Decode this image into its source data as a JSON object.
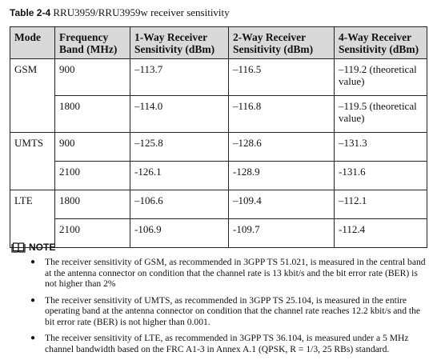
{
  "caption": {
    "number": "Table 2-4",
    "title": "RRU3959/RRU3959w receiver sensitivity"
  },
  "table": {
    "headers": [
      "Mode",
      "Frequency Band (MHz)",
      "1-Way Receiver Sensitivity (dBm)",
      "2-Way Receiver Sensitivity (dBm)",
      "4-Way Receiver Sensitivity (dBm)"
    ],
    "modes": [
      "GSM",
      "UMTS",
      "LTE"
    ],
    "rows": [
      {
        "band": "900",
        "one_way": "–113.7",
        "two_way": "–116.5",
        "four_way": "–119.2 (theoretical value)"
      },
      {
        "band": "1800",
        "one_way": "–114.0",
        "two_way": "–116.8",
        "four_way": "–119.5 (theoretical value)"
      },
      {
        "band": "900",
        "one_way": "–125.8",
        "two_way": "–128.6",
        "four_way": "–131.3"
      },
      {
        "band": "2100",
        "one_way": "-126.1",
        "two_way": "-128.9",
        "four_way": "-131.6"
      },
      {
        "band": "1800",
        "one_way": "–106.6",
        "two_way": "–109.4",
        "four_way": "–112.1"
      },
      {
        "band": "2100",
        "one_way": "-106.9",
        "two_way": "-109.7",
        "four_way": "-112.4"
      }
    ]
  },
  "note": {
    "label": "NOTE",
    "icon": "book-icon",
    "items": [
      "The receiver sensitivity of GSM, as recommended in 3GPP TS 51.021, is measured in the central band at the antenna connector on condition that the channel rate is 13 kbit/s and the bit error rate (BER) is not higher than 2%",
      "The receiver sensitivity of UMTS, as recommended in 3GPP TS 25.104, is measured in the entire operating band at the antenna connector on condition that the channel rate reaches 12.2 kbit/s and the bit error rate (BER) is not higher than 0.001.",
      "The receiver sensitivity of LTE, as recommended in 3GPP TS 36.104, is measured under a 5 MHz channel bandwidth based on the FRC A1-3 in Annex A.1 (QPSK, R = 1/3, 25 RBs) standard."
    ]
  }
}
